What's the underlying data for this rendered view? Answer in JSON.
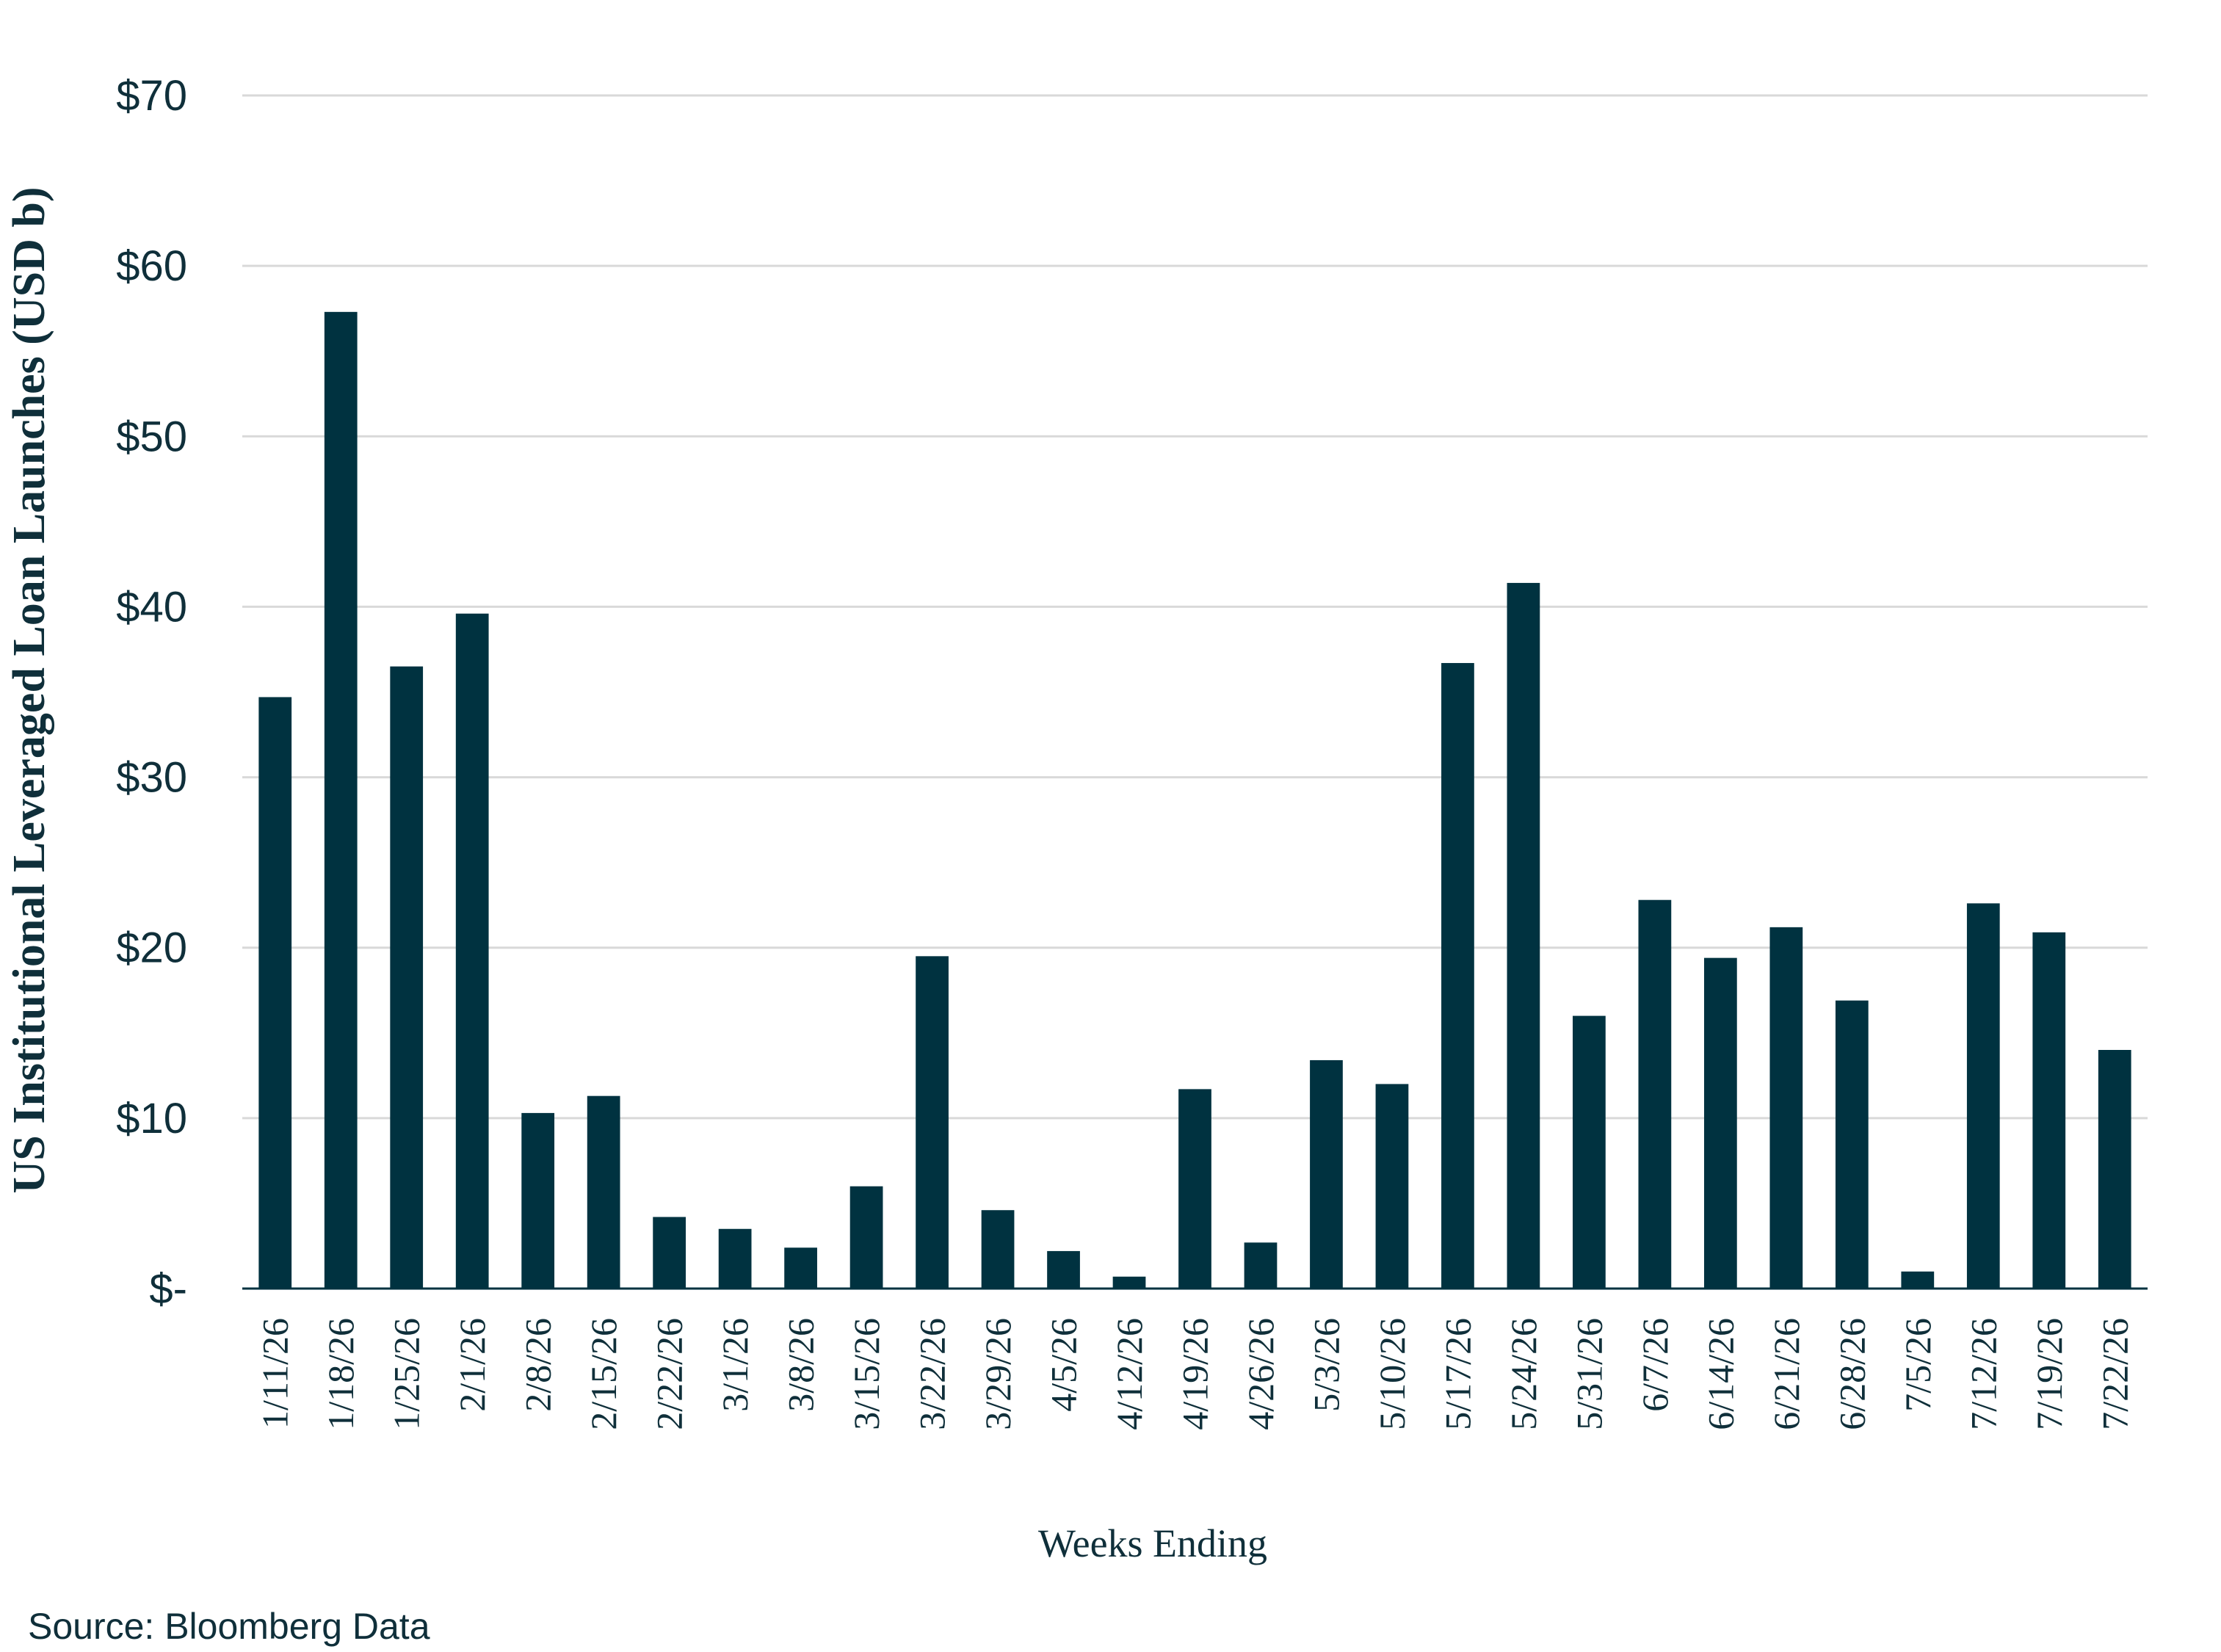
{
  "chart_data": {
    "type": "bar",
    "xlabel": "Weeks Ending",
    "ylabel": "US Institutional Leveraged Loan Launches (USD b)",
    "source": "Source: Bloomberg Data",
    "ylim": [
      0,
      70
    ],
    "yticks": [
      0,
      10,
      20,
      30,
      40,
      50,
      60,
      70
    ],
    "ytick_labels": [
      "$-",
      "$10",
      "$20",
      "$30",
      "$40",
      "$50",
      "$60",
      "$70"
    ],
    "grid": true,
    "bar_color": "#003240",
    "grid_color": "#d9d9d9",
    "categories": [
      "1/11/26",
      "1/18/26",
      "1/25/26",
      "2/1/26",
      "2/8/26",
      "2/15/26",
      "2/22/26",
      "3/1/26",
      "3/8/26",
      "3/15/26",
      "3/22/26",
      "3/29/26",
      "4/5/26",
      "4/12/26",
      "4/19/26",
      "4/26/26",
      "5/3/26",
      "5/10/26",
      "5/17/26",
      "5/24/26",
      "5/31/26",
      "6/7/26",
      "6/14/26",
      "6/21/26",
      "6/28/26",
      "7/5/26",
      "7/12/26",
      "7/19/26",
      "7/22/26"
    ],
    "values": [
      34.7,
      57.3,
      36.5,
      39.6,
      10.3,
      11.3,
      4.2,
      3.5,
      2.4,
      6.0,
      19.5,
      4.6,
      2.2,
      0.7,
      11.7,
      2.7,
      13.4,
      12.0,
      36.7,
      41.4,
      16.0,
      22.8,
      19.4,
      21.2,
      16.9,
      1.0,
      22.6,
      20.9,
      14.0
    ]
  }
}
